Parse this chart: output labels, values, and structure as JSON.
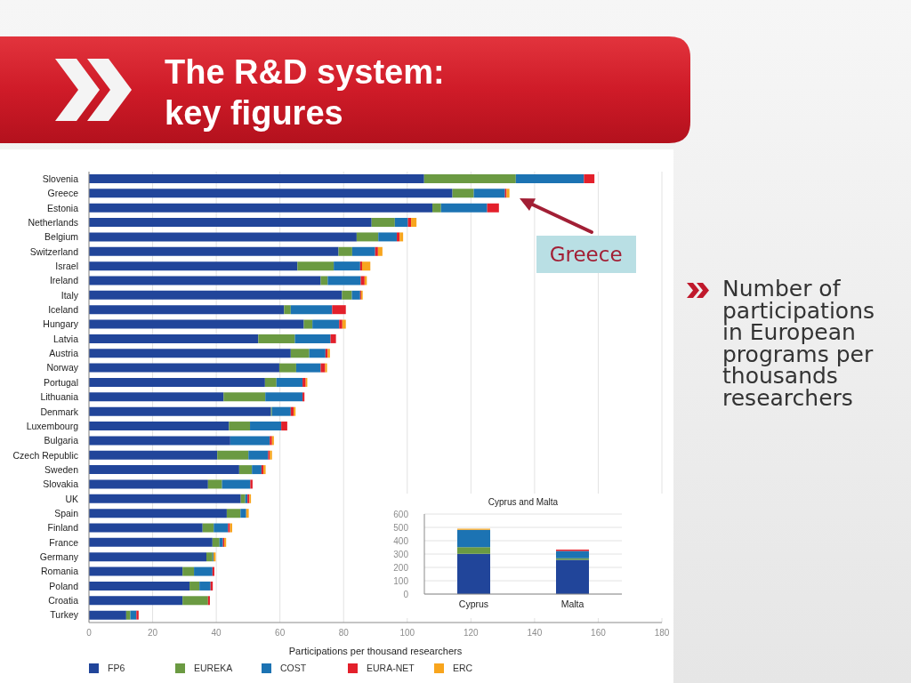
{
  "chart_data": [
    {
      "type": "bar",
      "title": "The R&D system: key figures",
      "orientation": "horizontal",
      "stacked": true,
      "categories": [
        "Slovenia",
        "Greece",
        "Estonia",
        "Netherlands",
        "Belgium",
        "Switzerland",
        "Israel",
        "Ireland",
        "Italy",
        "Iceland",
        "Hungary",
        "Latvia",
        "Austria",
        "Norway",
        "Portugal",
        "Lithuania",
        "Denmark",
        "Luxembourg",
        "Bulgaria",
        "Czech Republic",
        "Sweden",
        "Slovakia",
        "UK",
        "Spain",
        "Finland",
        "France",
        "Germany",
        "Romania",
        "Poland",
        "Croatia",
        "Turkey"
      ],
      "series": [
        {
          "name": "FP6",
          "color": "#21459a",
          "values": [
            105.3,
            114.2,
            107.9,
            88.8,
            84.1,
            78.4,
            65.5,
            72.8,
            79.5,
            61.3,
            67.5,
            53.2,
            63.4,
            59.8,
            55.3,
            42.3,
            57.2,
            44.0,
            44.4,
            40.3,
            47.2,
            37.4,
            47.7,
            43.3,
            35.7,
            38.8,
            36.9,
            29.4,
            31.6,
            29.4,
            11.7
          ]
        },
        {
          "name": "EUREKA",
          "color": "#6b9a42",
          "values": [
            28.8,
            6.7,
            2.7,
            7.3,
            6.8,
            4.3,
            11.4,
            2.2,
            3.1,
            2.1,
            2.7,
            11.5,
            5.8,
            5.3,
            3.6,
            13.1,
            0.3,
            6.6,
            0,
            9.8,
            4.0,
            4.4,
            1.4,
            4.3,
            3.5,
            2.2,
            1.9,
            3.6,
            3.1,
            8.0,
            1.3
          ]
        },
        {
          "name": "COST",
          "color": "#1c73b3",
          "values": [
            21.4,
            9.8,
            14.5,
            4.1,
            5.8,
            7.2,
            8.3,
            10.4,
            2.6,
            13.0,
            8.4,
            11.2,
            5.1,
            7.7,
            8.2,
            11.7,
            5.9,
            9.8,
            12.4,
            6.2,
            3.0,
            8.9,
            0.7,
            1.8,
            4.5,
            1.1,
            0.3,
            5.8,
            3.5,
            0,
            1.9
          ]
        },
        {
          "name": "EURA-NET",
          "color": "#e3202b",
          "values": [
            3.3,
            0.5,
            3.7,
            1.0,
            0.9,
            0.9,
            0.6,
            1.2,
            0.3,
            4.3,
            1.0,
            1.7,
            0.7,
            1.4,
            1.0,
            0.6,
            0.9,
            1.9,
            0.7,
            0.5,
            0.6,
            0.7,
            0.6,
            0,
            0.6,
            0.4,
            0,
            0.6,
            0.7,
            0.6,
            0.7
          ]
        },
        {
          "name": "ERC",
          "color": "#f8a51d",
          "values": [
            0,
            0.9,
            0,
            1.7,
            1.1,
            1.4,
            2.6,
            0.7,
            0.5,
            0,
            1.1,
            0,
            0.7,
            0.6,
            0.5,
            0,
            0.6,
            0,
            0.6,
            0.7,
            0.7,
            0,
            0.5,
            0.8,
            0.7,
            0.6,
            0.7,
            0,
            0,
            0,
            0
          ]
        }
      ],
      "xlim": [
        0,
        180
      ],
      "xticks": [
        0,
        20,
        40,
        60,
        80,
        100,
        120,
        140,
        160,
        180
      ],
      "xlabel": "Participations per thousand researchers",
      "grid": "x",
      "legend": "bottom",
      "annotations": [
        {
          "text": "Greece",
          "x": 132.1,
          "y": "Greece"
        },
        "Number of participations in European programs per thousands researchers"
      ]
    },
    {
      "type": "bar",
      "title": "Cyprus and Malta",
      "stacked": true,
      "categories": [
        "Cyprus",
        "Malta"
      ],
      "series": [
        {
          "color": "#21459a",
          "values": [
            302,
            256
          ]
        },
        {
          "color": "#6b9a42",
          "values": [
            49,
            13
          ]
        },
        {
          "color": "#1c73b3",
          "values": [
            130,
            55
          ]
        },
        {
          "color": "#e3202b",
          "values": [
            0,
            9
          ]
        },
        {
          "color": "#f8a51d",
          "values": [
            9,
            0
          ]
        }
      ],
      "ylim": [
        0,
        600
      ],
      "yticks": [
        0,
        100,
        200,
        300,
        400,
        500,
        600
      ],
      "grid": "y"
    }
  ]
}
